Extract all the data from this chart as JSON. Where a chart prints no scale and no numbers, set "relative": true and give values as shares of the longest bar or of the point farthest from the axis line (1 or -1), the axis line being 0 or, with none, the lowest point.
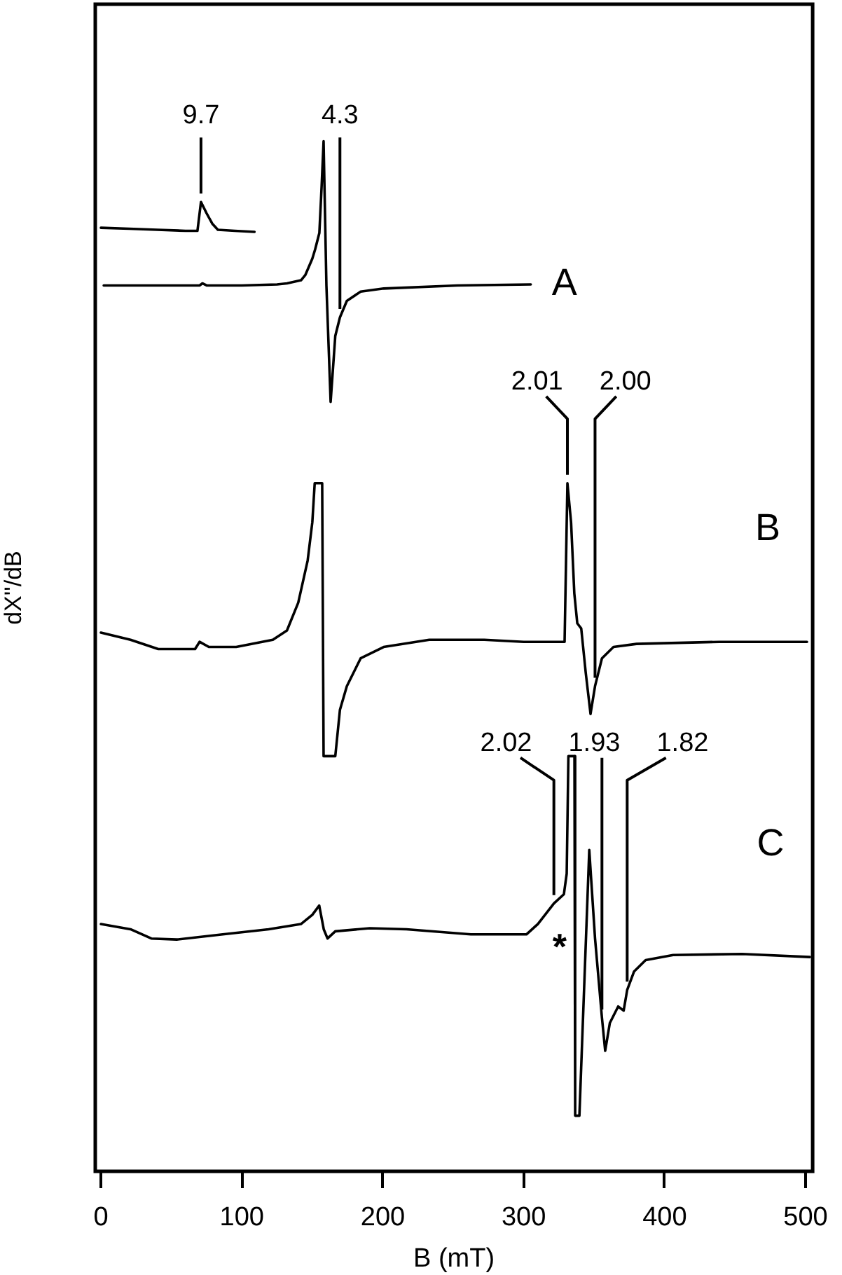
{
  "chart_data": {
    "type": "line",
    "xlabel": "B (mT)",
    "ylabel": "dX''/dB",
    "xlim": [
      -4,
      505
    ],
    "xticks": [
      0,
      100,
      200,
      300,
      400,
      500
    ],
    "relative": true,
    "series": [
      {
        "color": "#000000",
        "x": [
          0,
          20,
          40,
          60,
          68.5,
          71,
          75,
          79,
          83,
          95,
          109
        ],
        "values": [
          0.916,
          0.915,
          0.914,
          0.913,
          0.913,
          0.941,
          0.93,
          0.92,
          0.914,
          0.913,
          0.912
        ]
      },
      {
        "name": "A",
        "color": "#000000",
        "x": [
          2,
          70,
          72,
          75,
          100,
          125,
          132,
          142,
          145,
          150,
          152,
          155,
          156.6,
          158,
          160,
          163,
          166.3,
          169.6,
          174.5,
          184.3,
          200.6,
          253,
          305
        ],
        "values": [
          0.86,
          0.86,
          0.862,
          0.86,
          0.86,
          0.861,
          0.862,
          0.865,
          0.87,
          0.886,
          0.895,
          0.911,
          0.956,
          1,
          0.86,
          0.747,
          0.811,
          0.829,
          0.845,
          0.854,
          0.857,
          0.86,
          0.861
        ]
      },
      {
        "name": "B",
        "color": "#000000",
        "x": [
          0,
          21,
          40.7,
          66.8,
          70,
          76.6,
          96,
          122,
          132,
          140,
          146.7,
          150,
          151.7,
          157,
          158,
          166.3,
          169.6,
          174.5,
          184.3,
          200.6,
          233,
          272,
          300,
          329,
          331,
          333.6,
          335.9,
          338,
          340.8,
          344,
          347.4,
          350.6,
          355.5,
          363.7,
          380,
          438.7,
          501
        ],
        "values": [
          0.523,
          0.516,
          0.507,
          0.507,
          0.514,
          0.509,
          0.509,
          0.516,
          0.525,
          0.552,
          0.593,
          0.63,
          0.668,
          0.668,
          0.403,
          0.403,
          0.448,
          0.471,
          0.498,
          0.509,
          0.516,
          0.516,
          0.514,
          0.514,
          0.668,
          0.63,
          0.561,
          0.532,
          0.527,
          0.484,
          0.444,
          0.471,
          0.498,
          0.509,
          0.512,
          0.514,
          0.514
        ]
      },
      {
        "name": "C",
        "color": "#000000",
        "x": [
          0,
          21,
          35.8,
          53.8,
          86.4,
          119,
          141.9,
          150,
          154.9,
          158.1,
          160.8,
          166.3,
          190.8,
          216.8,
          262.5,
          301.9,
          310,
          321.4,
          328.5,
          330.5,
          331.7,
          336,
          336.5,
          339.5,
          346.5,
          350.6,
          355.5,
          357.8,
          361.1,
          367,
          370.9,
          373.4,
          378.3,
          386.5,
          406,
          455,
          503
        ],
        "values": [
          0.24,
          0.235,
          0.226,
          0.225,
          0.23,
          0.235,
          0.24,
          0.249,
          0.258,
          0.235,
          0.226,
          0.233,
          0.236,
          0.235,
          0.23,
          0.23,
          0.24,
          0.26,
          0.269,
          0.289,
          0.403,
          0.403,
          0.054,
          0.054,
          0.312,
          0.226,
          0.149,
          0.117,
          0.144,
          0.16,
          0.156,
          0.176,
          0.194,
          0.205,
          0.21,
          0.211,
          0.208
        ]
      }
    ],
    "annotations": [
      {
        "text": "9.7",
        "x": 71,
        "y": 0.941
      },
      {
        "text": "4.3",
        "x": 169.6,
        "y": 0.829
      },
      {
        "text": "2.01",
        "x": 331,
        "y": 0.668
      },
      {
        "text": "2.00",
        "x": 350.6,
        "y": 0.471
      },
      {
        "text": "2.02",
        "x": 321.4,
        "y": 0.26
      },
      {
        "text": "1.93",
        "x": 355.5,
        "y": 0.149
      },
      {
        "text": "1.82",
        "x": 373.4,
        "y": 0.176
      },
      {
        "text": "*",
        "x": 336.3,
        "y": 0.224
      }
    ]
  }
}
